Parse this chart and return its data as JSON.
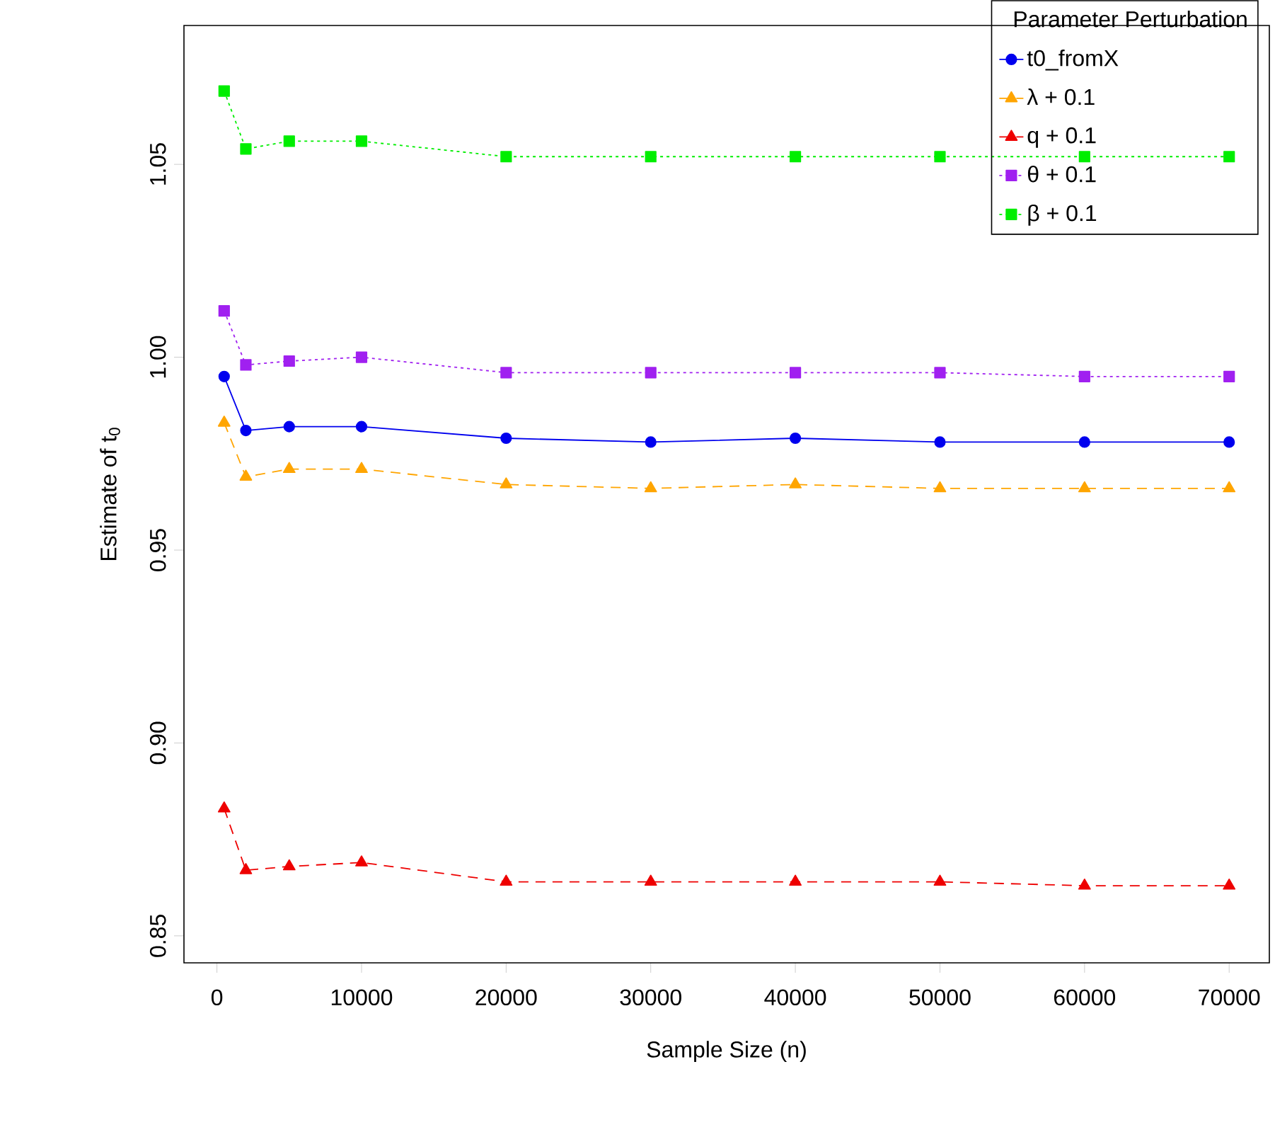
{
  "chart_data": {
    "type": "line",
    "xlabel": "Sample Size (n)",
    "ylabel": "Estimate of t$_{0}$",
    "legend_title": "Parameter Perturbation",
    "legend": "top right",
    "x": [
      500,
      2000,
      5000,
      10000,
      20000,
      30000,
      40000,
      50000,
      60000,
      70000
    ],
    "xlim": [
      -2280,
      72780
    ],
    "xticks": [
      0,
      10000,
      20000,
      30000,
      40000,
      50000,
      60000,
      70000
    ],
    "ylim": [
      0.843,
      1.086
    ],
    "yticks": [
      {
        "value": 0.85,
        "label": "0.85"
      },
      {
        "value": 0.9,
        "label": "0.90"
      },
      {
        "value": 0.95,
        "label": "0.95"
      },
      {
        "value": 1.0,
        "label": "1.00"
      },
      {
        "value": 1.05,
        "label": "1.05"
      }
    ],
    "series": [
      {
        "name": "t0_fromX",
        "color": "#0000ee",
        "marker": "circle",
        "line_style": "solid",
        "values": [
          0.995,
          0.981,
          0.982,
          0.982,
          0.979,
          0.978,
          0.979,
          0.978,
          0.978,
          0.978
        ]
      },
      {
        "name": "λ + 0.1",
        "color": "#ffa500",
        "marker": "triangle",
        "line_style": "dashed",
        "values": [
          0.983,
          0.969,
          0.971,
          0.971,
          0.967,
          0.966,
          0.967,
          0.966,
          0.966,
          0.966
        ]
      },
      {
        "name": "q + 0.1",
        "color": "#ee0000",
        "marker": "triangle",
        "line_style": "dashed",
        "values": [
          0.883,
          0.867,
          0.868,
          0.869,
          0.864,
          0.864,
          0.864,
          0.864,
          0.863,
          0.863
        ]
      },
      {
        "name": "θ + 0.1",
        "color": "#a020f0",
        "marker": "square",
        "line_style": "dotted",
        "values": [
          1.012,
          0.998,
          0.999,
          1.0,
          0.996,
          0.996,
          0.996,
          0.996,
          0.995,
          0.995
        ]
      },
      {
        "name": "β + 0.1",
        "color": "#00ee00",
        "marker": "square",
        "line_style": "dotted",
        "values": [
          1.069,
          1.054,
          1.056,
          1.056,
          1.052,
          1.052,
          1.052,
          1.052,
          1.052,
          1.052
        ]
      }
    ]
  }
}
